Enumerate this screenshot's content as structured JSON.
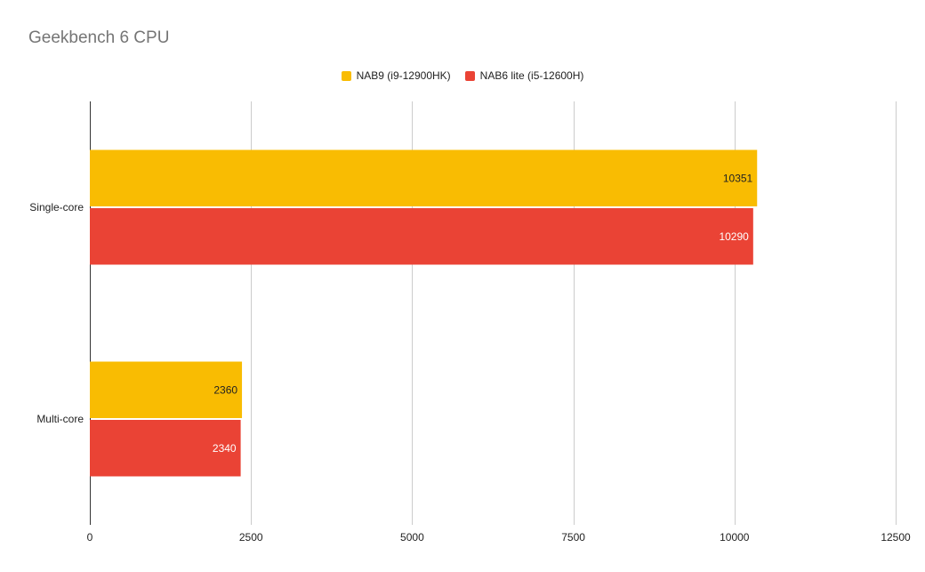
{
  "chart_data": {
    "type": "bar",
    "orientation": "horizontal",
    "title": "Geekbench 6 CPU",
    "categories": [
      "Single-core",
      "Multi-core"
    ],
    "series": [
      {
        "name": "NAB9 (i9-12900HK)",
        "color": "#f9bc02",
        "values": [
          10351,
          2360
        ],
        "label_color": "#222222"
      },
      {
        "name": "NAB6 lite (i5-12600H)",
        "color": "#ea4335",
        "values": [
          10290,
          2340
        ],
        "label_color": "#ffffff"
      }
    ],
    "xlim": [
      0,
      12500
    ],
    "xticks": [
      0,
      2500,
      5000,
      7500,
      10000,
      12500
    ],
    "xtick_labels": [
      "0",
      "2500",
      "5000",
      "7500",
      "10000",
      "12500"
    ],
    "grid": true,
    "legend_position": "top-center",
    "xlabel": "",
    "ylabel": ""
  }
}
